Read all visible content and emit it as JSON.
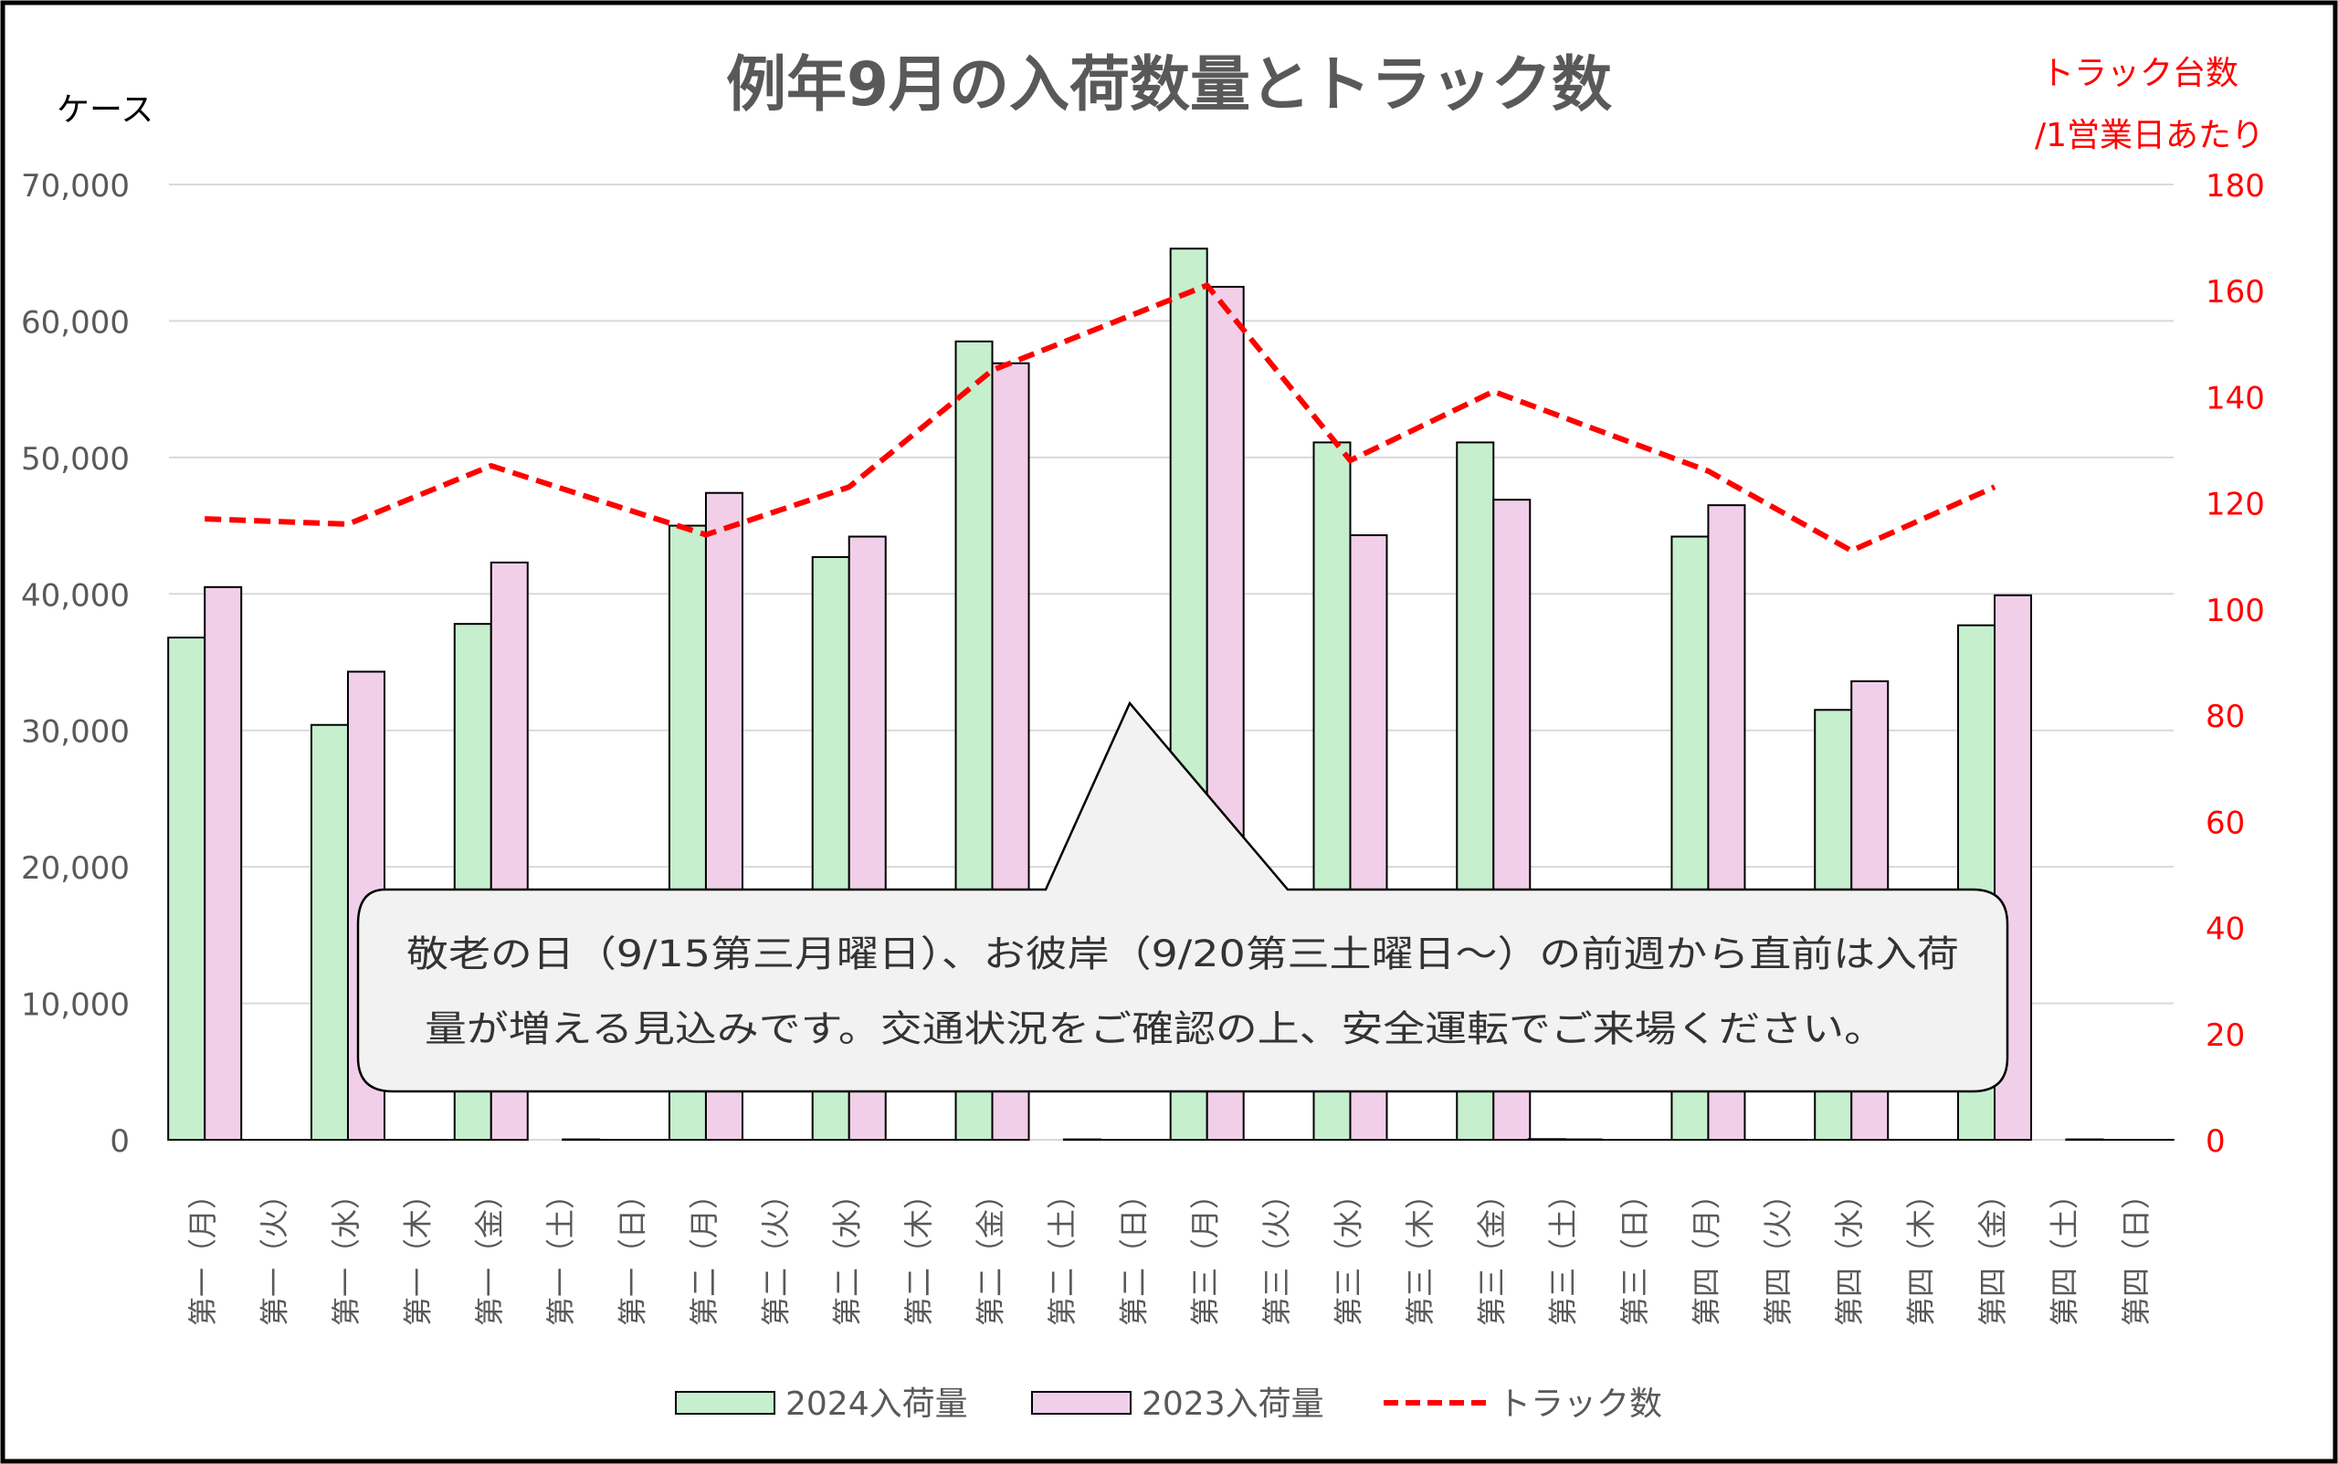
{
  "chart_data": {
    "type": "bar",
    "title": "例年9月の入荷数量とトラック数",
    "ylabel": "ケース",
    "y2label_line1": "トラック台数",
    "y2label_line2": "/1営業日あたり",
    "ylim": [
      0,
      70000
    ],
    "y2lim": [
      0,
      180
    ],
    "yticks": [
      "70,000",
      "60,000",
      "50,000",
      "40,000",
      "30,000",
      "20,000",
      "10,000",
      "0"
    ],
    "y2ticks": [
      "180",
      "160",
      "140",
      "120",
      "100",
      "80",
      "60",
      "40",
      "20",
      "0"
    ],
    "grid": true,
    "legend_position": "bottom",
    "categories": [
      "第一（月）",
      "第一（火）",
      "第一（水）",
      "第一（木）",
      "第一（金）",
      "第一（土）",
      "第一（日）",
      "第二（月）",
      "第二（火）",
      "第二（水）",
      "第二（木）",
      "第二（金）",
      "第二（土）",
      "第二（日）",
      "第三（月）",
      "第三（火）",
      "第三（水）",
      "第三（木）",
      "第三（金）",
      "第三（土）",
      "第三（日）",
      "第四（月）",
      "第四（火）",
      "第四（水）",
      "第四（木）",
      "第四（金）",
      "第四（土）",
      "第四（日）"
    ],
    "series": [
      {
        "name": "2024入荷量",
        "type": "bar",
        "axis": "left",
        "color": "#c6efce",
        "values": [
          36800,
          0,
          30400,
          0,
          37800,
          0,
          0,
          45000,
          0,
          42700,
          0,
          58500,
          0,
          0,
          65300,
          0,
          51100,
          0,
          51100,
          50,
          0,
          44200,
          0,
          31500,
          0,
          37700,
          0,
          0
        ]
      },
      {
        "name": "2023入荷量",
        "type": "bar",
        "axis": "left",
        "color": "#f2cfe9",
        "values": [
          40500,
          0,
          34300,
          0,
          42300,
          30,
          0,
          47400,
          0,
          44200,
          0,
          56900,
          30,
          0,
          62500,
          0,
          44300,
          0,
          46900,
          30,
          0,
          46500,
          0,
          33600,
          0,
          39900,
          30,
          0
        ]
      },
      {
        "name": "トラック数",
        "type": "line",
        "axis": "right",
        "color": "#ff0000",
        "style": "dashed",
        "values": [
          117,
          null,
          116,
          null,
          127,
          null,
          null,
          114,
          null,
          123,
          null,
          145,
          null,
          null,
          161,
          null,
          128,
          null,
          141,
          null,
          null,
          126,
          null,
          111,
          null,
          123,
          null,
          null
        ]
      }
    ]
  },
  "callout": {
    "line1": "敬老の日（9/15第三月曜日）、お彼岸（9/20第三土曜日～）の前週から直前は入荷",
    "line2": "量が増える見込みです。交通状況をご確認の上、安全運転でご来場ください。"
  },
  "colors": {
    "bar_2024": "#c6efce",
    "bar_2023": "#f2cfe9",
    "line": "#ff0000",
    "grid": "#d9d9d9",
    "axis_text": "#595959",
    "title": "#595959",
    "callout_fill": "#f2f2f2"
  }
}
